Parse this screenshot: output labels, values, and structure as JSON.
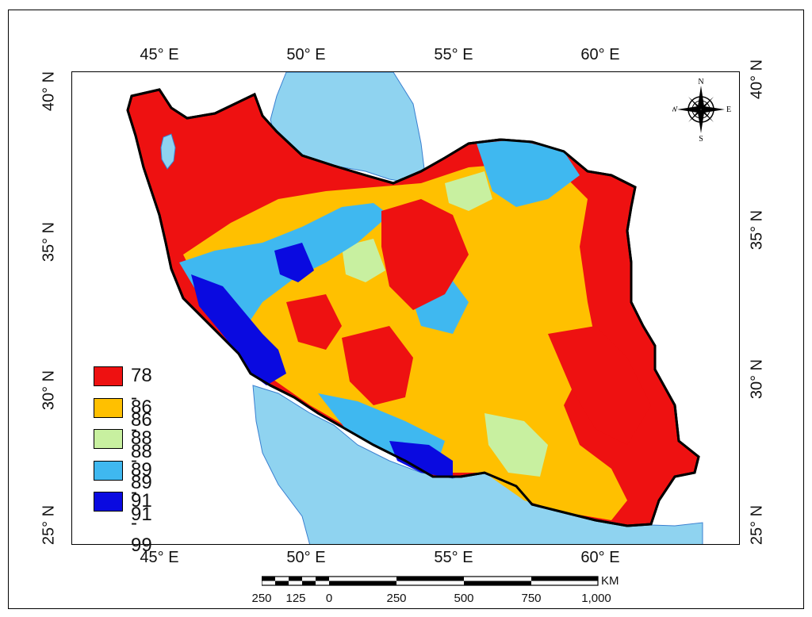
{
  "map": {
    "top_longitude_labels": [
      "45° E",
      "50° E",
      "55° E",
      "60° E"
    ],
    "bottom_longitude_labels": [
      "45° E",
      "50° E",
      "55° E",
      "60° E"
    ],
    "left_latitude_labels": [
      "40° N",
      "35° N",
      "30° N",
      "25° N"
    ],
    "right_latitude_labels": [
      "40° N",
      "35° N",
      "30° N",
      "25° N"
    ],
    "legend": [
      {
        "label": "78 - 86",
        "color": "#ee1111"
      },
      {
        "label": "86 - 88",
        "color": "#ffc000"
      },
      {
        "label": "88 - 89",
        "color": "#c8f0a0"
      },
      {
        "label": "89 - 91",
        "color": "#3fb8f0"
      },
      {
        "label": "91 - 99",
        "color": "#0a0ae0"
      }
    ],
    "scale_bar": {
      "ticks": [
        "250",
        "125",
        "0",
        "250",
        "500",
        "750",
        "1,000"
      ],
      "unit": "KM"
    },
    "compass": {
      "n": "N",
      "s": "S",
      "e": "E",
      "w": "W"
    },
    "colors": {
      "water": "#8fd3f0",
      "border": "#000000"
    }
  }
}
